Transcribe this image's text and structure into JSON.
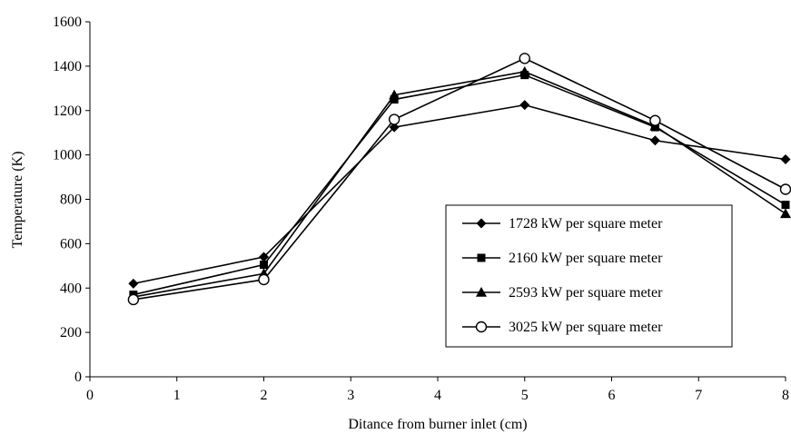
{
  "chart_data": {
    "type": "line",
    "title": "",
    "xlabel": "Ditance from burner inlet (cm)",
    "ylabel": "Temperature (K)",
    "xlim": [
      0,
      8
    ],
    "ylim": [
      0,
      1600
    ],
    "xticks": [
      0,
      1,
      2,
      3,
      4,
      5,
      6,
      7,
      8
    ],
    "yticks": [
      0,
      200,
      400,
      600,
      800,
      1000,
      1200,
      1400,
      1600
    ],
    "grid": false,
    "legend_position": "right",
    "x": [
      0.5,
      2,
      3.5,
      5,
      6.5,
      8
    ],
    "series": [
      {
        "name": "1728 kW per square meter",
        "marker": "diamond",
        "values": [
          420,
          540,
          1125,
          1225,
          1065,
          980
        ]
      },
      {
        "name": "2160 kW per square meter",
        "marker": "square",
        "values": [
          370,
          505,
          1250,
          1360,
          1125,
          775
        ]
      },
      {
        "name": "2593 kW per square meter",
        "marker": "triangle",
        "values": [
          360,
          465,
          1270,
          1375,
          1130,
          735
        ]
      },
      {
        "name": "3025 kW per square meter",
        "marker": "open-circle",
        "values": [
          348,
          438,
          1160,
          1435,
          1155,
          845
        ]
      }
    ]
  }
}
